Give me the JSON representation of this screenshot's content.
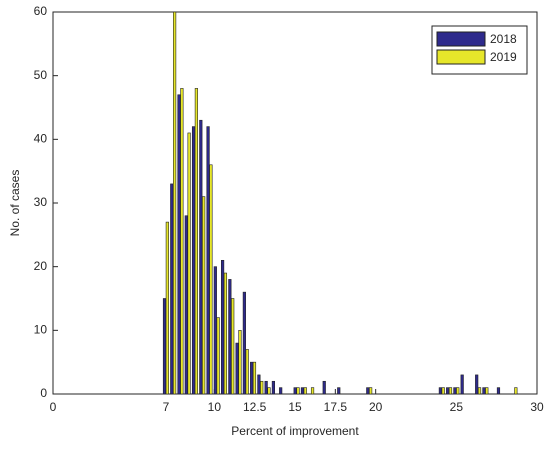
{
  "chart_data": {
    "type": "bar",
    "xlabel": "Percent of improvement",
    "ylabel": "No. of cases",
    "x": [
      7,
      7.45,
      7.9,
      8.35,
      8.8,
      9.25,
      9.7,
      10.15,
      10.6,
      11.05,
      11.5,
      11.95,
      12.4,
      12.85,
      13.3,
      13.75,
      14.2,
      15.1,
      15.55,
      16.0,
      16.9,
      17.8,
      19.6,
      24.1,
      24.55,
      25.0,
      25.45,
      26.35,
      26.8,
      27.7,
      28.6
    ],
    "series": [
      {
        "name": "2018",
        "color": "#2e2a8c",
        "values": [
          15,
          33,
          47,
          28,
          42,
          43,
          42,
          20,
          21,
          18,
          8,
          16,
          5,
          3,
          2,
          2,
          1,
          1,
          1,
          0,
          2,
          1,
          1,
          1,
          1,
          1,
          3,
          3,
          1,
          1,
          0
        ]
      },
      {
        "name": "2019",
        "color": "#e6e62a",
        "values": [
          27,
          60,
          48,
          41,
          48,
          31,
          36,
          12,
          19,
          15,
          10,
          7,
          5,
          2,
          1,
          0,
          0,
          1,
          1,
          1,
          0,
          0,
          1,
          1,
          1,
          1,
          0,
          1,
          1,
          0,
          1
        ]
      }
    ],
    "xlim": [
      0,
      30
    ],
    "xticks": [
      0,
      7,
      10,
      12.5,
      15,
      17.5,
      20,
      25,
      30
    ],
    "ylim": [
      0,
      60
    ],
    "yticks": [
      0,
      10,
      20,
      30,
      40,
      50,
      60
    ],
    "legend": "northeast"
  }
}
